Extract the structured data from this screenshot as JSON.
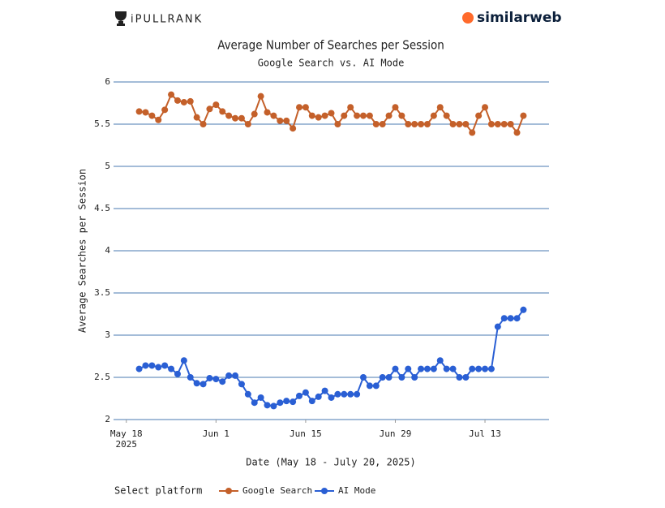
{
  "header": {
    "left_logo": "iPULLRANK",
    "right_logo": "similarweb"
  },
  "chart_data": {
    "type": "line",
    "title": "Average Number of Searches per Session",
    "subtitle": "Google Search vs. AI Mode",
    "y_label": "Average Searches per Session",
    "x_label": "Date (May 18 - July 20, 2025)",
    "legend_title": "Select platform",
    "x": [
      "2025-05-20",
      "2025-05-21",
      "2025-05-22",
      "2025-05-23",
      "2025-05-24",
      "2025-05-25",
      "2025-05-26",
      "2025-05-27",
      "2025-05-28",
      "2025-05-29",
      "2025-05-30",
      "2025-05-31",
      "2025-06-01",
      "2025-06-02",
      "2025-06-03",
      "2025-06-04",
      "2025-06-05",
      "2025-06-06",
      "2025-06-07",
      "2025-06-08",
      "2025-06-09",
      "2025-06-10",
      "2025-06-11",
      "2025-06-12",
      "2025-06-13",
      "2025-06-14",
      "2025-06-15",
      "2025-06-16",
      "2025-06-17",
      "2025-06-18",
      "2025-06-19",
      "2025-06-20",
      "2025-06-21",
      "2025-06-22",
      "2025-06-23",
      "2025-06-24",
      "2025-06-25",
      "2025-06-26",
      "2025-06-27",
      "2025-06-28",
      "2025-06-29",
      "2025-06-30",
      "2025-07-01",
      "2025-07-02",
      "2025-07-03",
      "2025-07-04",
      "2025-07-05",
      "2025-07-06",
      "2025-07-07",
      "2025-07-08",
      "2025-07-09",
      "2025-07-10",
      "2025-07-11",
      "2025-07-12",
      "2025-07-13",
      "2025-07-14",
      "2025-07-15",
      "2025-07-16",
      "2025-07-17",
      "2025-07-18",
      "2025-07-19"
    ],
    "series": [
      {
        "name": "Google Search",
        "color": "#c4602a",
        "values": [
          5.65,
          5.64,
          5.6,
          5.55,
          5.67,
          5.85,
          5.78,
          5.76,
          5.77,
          5.58,
          5.5,
          5.68,
          5.73,
          5.65,
          5.6,
          5.57,
          5.57,
          5.5,
          5.62,
          5.83,
          5.64,
          5.6,
          5.54,
          5.54,
          5.45,
          5.7,
          5.7,
          5.6,
          5.58,
          5.6,
          5.63,
          5.5,
          5.6,
          5.7,
          5.6,
          5.6,
          5.6,
          5.5,
          5.5,
          5.6,
          5.7,
          5.6,
          5.5,
          5.5,
          5.5,
          5.5,
          5.6,
          5.7,
          5.6,
          5.5,
          5.5,
          5.5,
          5.4,
          5.6,
          5.7,
          5.5,
          5.5,
          5.5,
          5.5,
          5.4,
          5.6
        ]
      },
      {
        "name": "AI Mode",
        "color": "#2a5fd4",
        "values": [
          2.6,
          2.64,
          2.64,
          2.62,
          2.64,
          2.6,
          2.54,
          2.7,
          2.5,
          2.43,
          2.42,
          2.49,
          2.48,
          2.45,
          2.52,
          2.52,
          2.42,
          2.3,
          2.2,
          2.26,
          2.17,
          2.16,
          2.2,
          2.22,
          2.21,
          2.28,
          2.32,
          2.22,
          2.27,
          2.34,
          2.26,
          2.3,
          2.3,
          2.3,
          2.3,
          2.5,
          2.4,
          2.4,
          2.5,
          2.5,
          2.6,
          2.5,
          2.6,
          2.5,
          2.6,
          2.6,
          2.6,
          2.7,
          2.6,
          2.6,
          2.5,
          2.5,
          2.6,
          2.6,
          2.6,
          2.6,
          3.1,
          3.2,
          3.2,
          3.2,
          3.3
        ]
      }
    ],
    "xlim": [
      "2025-05-16",
      "2025-07-23"
    ],
    "xticks": [
      {
        "value": "2025-05-18",
        "label": "May 18 2025"
      },
      {
        "value": "2025-06-01",
        "label": "Jun 1"
      },
      {
        "value": "2025-06-15",
        "label": "Jun 15"
      },
      {
        "value": "2025-06-29",
        "label": "Jun 29"
      },
      {
        "value": "2025-07-13",
        "label": "Jul 13"
      }
    ],
    "ylim": [
      2,
      6
    ],
    "yticks": [
      2,
      2.5,
      3,
      3.5,
      4,
      4.5,
      5,
      5.5,
      6
    ],
    "grid": true,
    "grid_color": "#4a7ab0"
  }
}
